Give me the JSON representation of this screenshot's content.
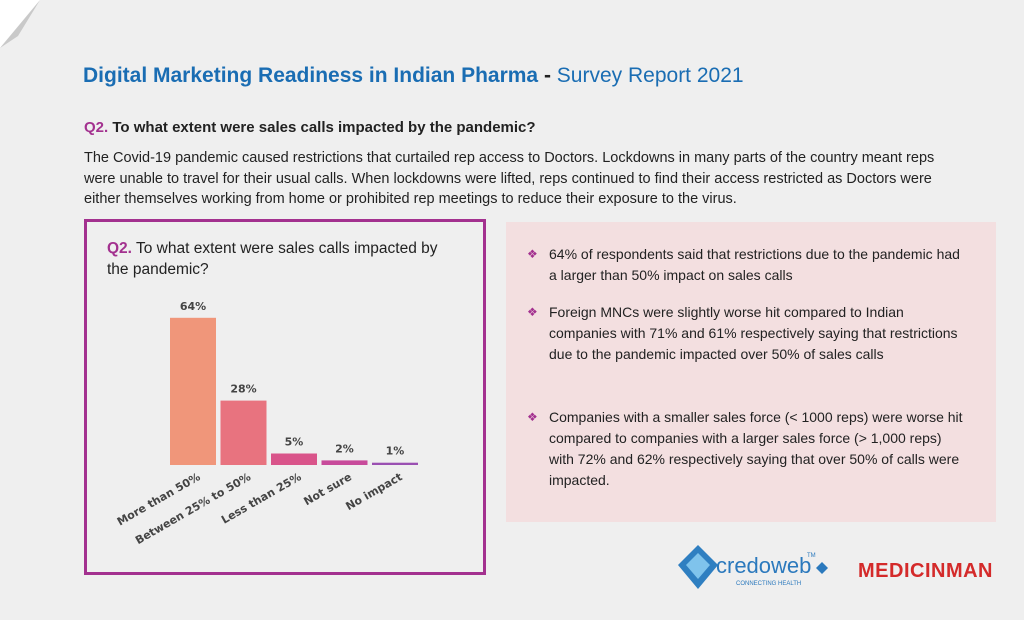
{
  "header": {
    "title_main": "Digital Marketing Readiness in Indian Pharma",
    "separator": "-",
    "title_sub": "Survey Report 2021"
  },
  "question": {
    "label": "Q2.",
    "text": "To what extent were sales calls impacted by the pandemic?"
  },
  "intro": "The Covid-19 pandemic caused restrictions that curtailed rep access to Doctors. Lockdowns in many parts of the country meant reps were unable to travel for their usual calls. When lockdowns were lifted, reps continued to find their access restricted as Doctors were either themselves working from home or prohibited rep meetings to reduce their exposure to the virus.",
  "chart_data": {
    "type": "bar",
    "title_label": "Q2.",
    "title": "To what extent were sales calls impacted by the pandemic?",
    "categories": [
      "More than 50%",
      "Between 25% to 50%",
      "Less than 25%",
      "Not sure",
      "No impact"
    ],
    "values": [
      64,
      28,
      5,
      2,
      1
    ],
    "value_labels": [
      "64%",
      "28%",
      "5%",
      "2%",
      "1%"
    ],
    "colors": [
      "#f0967a",
      "#e8737f",
      "#d9548a",
      "#c84b9b",
      "#9a50b2"
    ]
  },
  "bullets": [
    "64% of respondents said that restrictions due to the pandemic had a larger than 50% impact on sales calls",
    "Foreign MNCs were slightly worse hit compared to Indian companies with 71% and 61% respectively saying that restrictions due to the pandemic impacted over 50% of sales calls",
    "Companies with a smaller sales force (< 1000 reps) were worse hit compared to companies with a larger sales force (> 1,000 reps) with 72% and 62% respectively saying that over 50% of calls were impacted."
  ],
  "logos": {
    "credoweb": "credoweb",
    "trademark": "TM",
    "tagline": "CONNECTING HEALTH",
    "medicinman": "MEDICINMAN"
  }
}
